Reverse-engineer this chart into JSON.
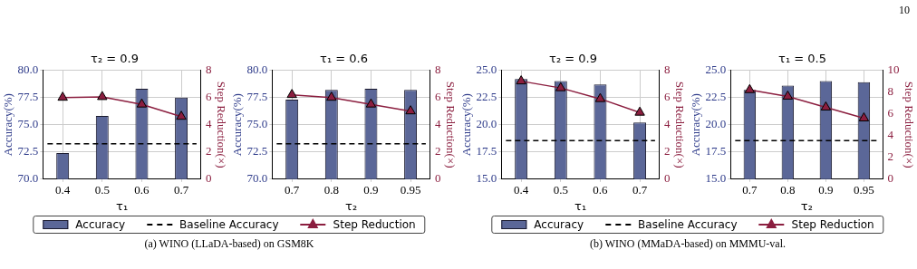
{
  "chart_data": [
    {
      "type": "bar",
      "title": "τ₂ = 0.9",
      "xlabel": "τ₁",
      "ylabel": "Accuracy(%)",
      "y2label": "Step Reduction(×)",
      "categories": [
        "0.4",
        "0.5",
        "0.6",
        "0.7"
      ],
      "series": [
        {
          "name": "Accuracy",
          "color": "#5b6798",
          "values": [
            72.4,
            75.8,
            78.3,
            77.5
          ]
        },
        {
          "name": "Step Reduction",
          "type": "line",
          "axis": "y2",
          "color": "#8b1e3f",
          "values": [
            6.0,
            6.05,
            5.5,
            4.6
          ]
        }
      ],
      "ylim": [
        70,
        80
      ],
      "yticks": [
        {
          "value": 70,
          "label": "70.0"
        },
        72.5,
        {
          "value": 75,
          "label": "75.0"
        },
        77.5,
        {
          "value": 80,
          "label": "80.0"
        }
      ],
      "y2lim": [
        0,
        8
      ],
      "y2ticks": [
        0,
        2,
        4,
        6,
        8
      ],
      "ref_lines": [
        {
          "axis": "y",
          "value": 73.25,
          "label": "Baseline Accuracy",
          "color": "#000000",
          "line_style": "dashed"
        }
      ],
      "grid": true,
      "marker": "triangle",
      "legend": "bottom",
      "annotations": [
        "(a) WINO (LLaDA-based) on GSM8K"
      ]
    },
    {
      "type": "bar",
      "title": "τ₁ = 0.6",
      "xlabel": "τ₂",
      "ylabel": "Accuracy(%)",
      "y2label": "Step Reduction(×)",
      "categories": [
        "0.7",
        "0.8",
        "0.9",
        "0.95"
      ],
      "series": [
        {
          "color": "#5b6798",
          "values": [
            77.3,
            78.2,
            78.3,
            78.2
          ]
        },
        {
          "type": "line",
          "axis": "y2",
          "color": "#8b1e3f",
          "values": [
            6.2,
            6.0,
            5.5,
            5.0
          ]
        }
      ],
      "ylim": [
        70,
        80
      ],
      "yticks": [
        {
          "value": 70,
          "label": "70.0"
        },
        72.5,
        {
          "value": 75,
          "label": "75.0"
        },
        77.5,
        {
          "value": 80,
          "label": "80.0"
        }
      ],
      "y2lim": [
        0,
        8
      ],
      "y2ticks": [
        0,
        2,
        4,
        6,
        8
      ],
      "ref_lines": [
        {
          "axis": "y",
          "value": 73.25,
          "color": "#000000",
          "line_style": "dashed"
        }
      ],
      "grid": true,
      "marker": "triangle",
      "annotations": [
        "10"
      ]
    },
    {
      "type": "bar",
      "title": "τ₂ = 0.9",
      "xlabel": "τ₁",
      "ylabel": "Accuracy(%)",
      "y2label": "Step Reduction(×)",
      "categories": [
        "0.4",
        "0.5",
        "0.6",
        "0.7"
      ],
      "series": [
        {
          "name": "Accuracy",
          "color": "#5b6798",
          "values": [
            24.2,
            24.0,
            23.7,
            20.2
          ]
        },
        {
          "name": "Step Reduction",
          "type": "line",
          "axis": "y2",
          "color": "#8b1e3f",
          "values": [
            7.2,
            6.7,
            5.9,
            4.9
          ]
        }
      ],
      "ylim": [
        15,
        25
      ],
      "yticks": [
        {
          "value": 15,
          "label": "15.0"
        },
        17.5,
        {
          "value": 20,
          "label": "20.0"
        },
        22.5,
        {
          "value": 25,
          "label": "25.0"
        }
      ],
      "y2lim": [
        0,
        8
      ],
      "y2ticks": [
        0,
        2,
        4,
        6,
        8
      ],
      "ref_lines": [
        {
          "axis": "y",
          "value": 18.55,
          "label": "Baseline Accuracy",
          "color": "#000000",
          "line_style": "dashed"
        }
      ],
      "grid": true,
      "marker": "triangle",
      "legend": "bottom",
      "annotations": [
        "(b) WINO (MMaDA-based) on MMMU-val."
      ]
    },
    {
      "type": "bar",
      "title": "τ₁ = 0.5",
      "xlabel": "τ₂",
      "ylabel": "Accuracy(%)",
      "y2label": "Step Reduction(×)",
      "categories": [
        "0.7",
        "0.8",
        "0.9",
        "0.95"
      ],
      "series": [
        {
          "color": "#5b6798",
          "values": [
            23.2,
            23.6,
            24.0,
            23.9
          ]
        },
        {
          "type": "line",
          "axis": "y2",
          "color": "#8b1e3f",
          "values": [
            8.2,
            7.6,
            6.6,
            5.6
          ]
        }
      ],
      "ylim": [
        15,
        25
      ],
      "yticks": [
        {
          "value": 15,
          "label": "15.0"
        },
        17.5,
        {
          "value": 20,
          "label": "20.0"
        },
        22.5,
        {
          "value": 25,
          "label": "25.0"
        }
      ],
      "y2lim": [
        0,
        10
      ],
      "y2ticks": [
        0,
        2,
        4,
        6,
        8,
        10
      ],
      "ref_lines": [
        {
          "axis": "y",
          "value": 18.55,
          "color": "#000000",
          "line_style": "dashed"
        }
      ],
      "grid": true,
      "marker": "triangle"
    }
  ]
}
